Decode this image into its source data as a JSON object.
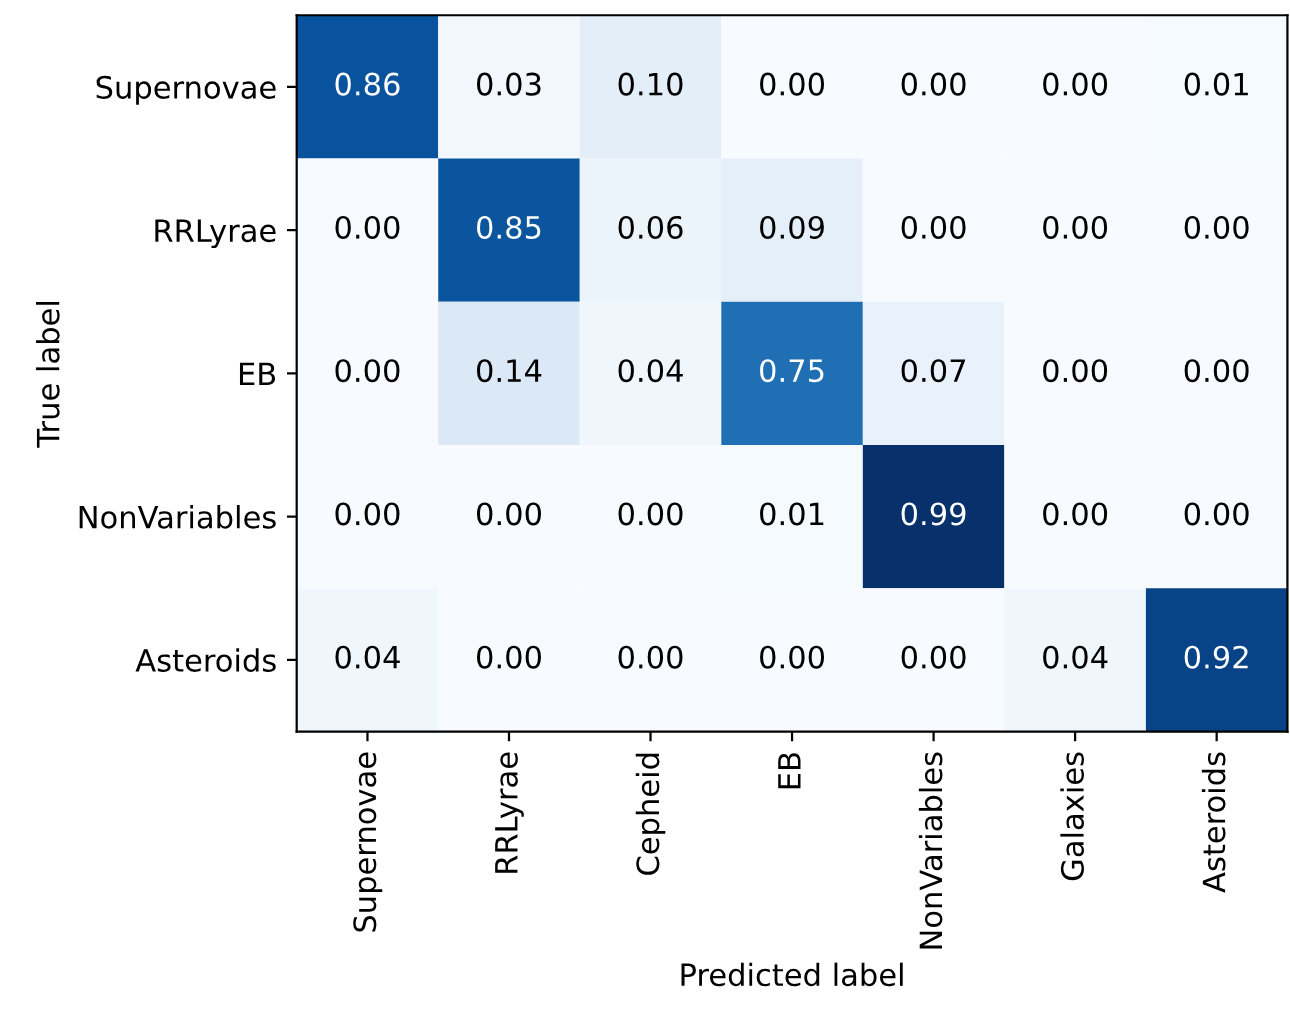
{
  "chart_data": {
    "type": "heatmap",
    "xlabel": "Predicted label",
    "ylabel": "True label",
    "categories": [
      "Supernovae",
      "RRLyrae",
      "Cepheid",
      "EB",
      "NonVariables",
      "Galaxies",
      "Asteroids"
    ],
    "y_categories": [
      "Supernovae",
      "RRLyrae",
      "EB",
      "NonVariables",
      "Asteroids"
    ],
    "cells": [
      [
        0.86,
        0.03,
        0.1,
        0.0,
        0.0,
        0.0,
        0.01
      ],
      [
        0.0,
        0.85,
        0.06,
        0.09,
        0.0,
        0.0,
        0.0
      ],
      [
        0.0,
        0.14,
        0.04,
        0.75,
        0.07,
        0.0,
        0.0
      ],
      [
        0.0,
        0.0,
        0.0,
        0.01,
        0.99,
        0.0,
        0.0
      ],
      [
        0.04,
        0.0,
        0.0,
        0.0,
        0.0,
        0.04,
        0.92
      ]
    ],
    "cell_labels": [
      [
        "0.86",
        "0.03",
        "0.10",
        "0.00",
        "0.00",
        "0.00",
        "0.01"
      ],
      [
        "0.00",
        "0.85",
        "0.06",
        "0.09",
        "0.00",
        "0.00",
        "0.00"
      ],
      [
        "0.00",
        "0.14",
        "0.04",
        "0.75",
        "0.07",
        "0.00",
        "0.00"
      ],
      [
        "0.00",
        "0.00",
        "0.00",
        "0.01",
        "0.99",
        "0.00",
        "0.00"
      ],
      [
        "0.04",
        "0.00",
        "0.00",
        "0.00",
        "0.00",
        "0.04",
        "0.92"
      ]
    ],
    "data_labels": true,
    "grid": false
  }
}
